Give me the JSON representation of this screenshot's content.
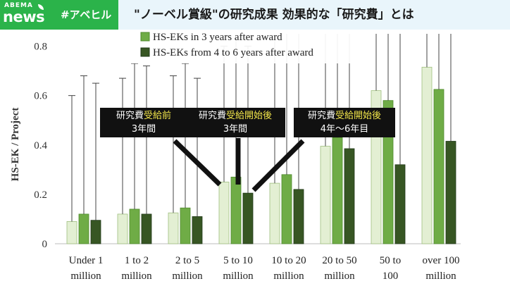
{
  "header": {
    "brand_top": "ABEMA",
    "brand_main": "news",
    "hashtag": "#アベヒル",
    "headline": "\"ノーベル賞級\"の研究成果 効果的な「研究費」とは"
  },
  "callouts": [
    {
      "prefix": "研究費",
      "highlight": "受給前",
      "line2": "3年間"
    },
    {
      "prefix": "研究費",
      "highlight": "受給開始後",
      "line2": "3年間"
    },
    {
      "prefix": "研究費",
      "highlight": "受給開始後",
      "line2": "4年～6年目"
    }
  ],
  "colors": {
    "brand_green": "#2bb34a",
    "series_before": "#e3efd3",
    "series_3yr": "#6fac46",
    "series_4to6": "#375623",
    "callout_bg": "#111111",
    "callout_highlight": "#f2e64a"
  },
  "chart_data": {
    "type": "bar",
    "ylabel": "HS-EK / Project",
    "ylim": [
      0,
      0.85
    ],
    "yticks": [
      "0",
      "0.2",
      "0.4",
      "0.6",
      "0.8"
    ],
    "categories": [
      [
        "Under 1",
        "million"
      ],
      [
        "1 to 2",
        "million"
      ],
      [
        "2 to 5",
        "million"
      ],
      [
        "5 to 10",
        "million"
      ],
      [
        "10 to 20",
        "million"
      ],
      [
        "20 to 50",
        "million"
      ],
      [
        "50 to",
        "100"
      ],
      [
        "over 100",
        "million"
      ]
    ],
    "series": [
      {
        "values": [
          0.09,
          0.12,
          0.125,
          0.25,
          0.245,
          0.395,
          0.62,
          0.715
        ],
        "err_top": [
          0.6,
          0.67,
          0.68,
          0.8,
          0.85,
          0.85,
          0.85,
          0.85
        ]
      },
      {
        "name": "HS-EKs in 3 years after award",
        "values": [
          0.12,
          0.14,
          0.145,
          0.27,
          0.28,
          0.43,
          0.58,
          0.625
        ],
        "err_top": [
          0.68,
          0.73,
          0.73,
          0.85,
          0.85,
          0.85,
          0.85,
          0.85
        ]
      },
      {
        "name": "HS-EKs from 4 to 6 years after award",
        "values": [
          0.095,
          0.12,
          0.11,
          0.205,
          0.22,
          0.385,
          0.32,
          0.415
        ],
        "err_top": [
          0.65,
          0.72,
          0.67,
          0.8,
          0.85,
          0.85,
          0.85,
          0.85
        ]
      }
    ],
    "legend_position": "top-center",
    "grid": false
  }
}
